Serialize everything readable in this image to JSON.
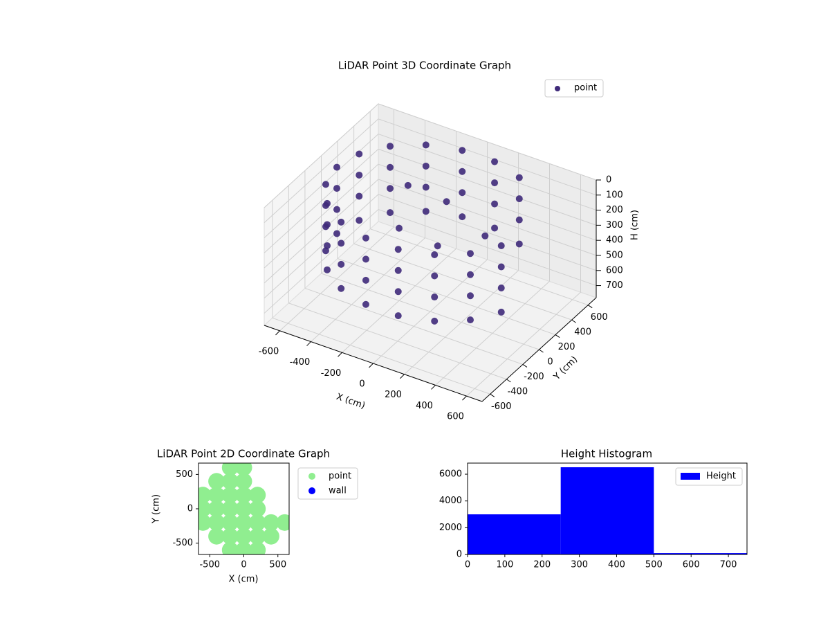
{
  "chart_data": [
    {
      "type": "scatter3d",
      "title": "LiDAR Point 3D Coordinate Graph",
      "xlabel": "X (cm)",
      "ylabel": "Y (cm)",
      "zlabel": "H (cm)",
      "xlim": [
        -700,
        700
      ],
      "ylim": [
        -700,
        700
      ],
      "zlim": [
        780,
        0
      ],
      "xticks": [
        -600,
        -400,
        -200,
        0,
        200,
        400,
        600
      ],
      "yticks": [
        -600,
        -400,
        -200,
        0,
        200,
        400,
        600
      ],
      "zticks": [
        0,
        100,
        200,
        300,
        400,
        500,
        600,
        700
      ],
      "grid": true,
      "legend": "upper right",
      "series": [
        {
          "name": "point",
          "color": "#3f2a7a",
          "x": [
            300,
            300,
            300,
            300,
            104,
            104,
            104,
            104,
            -104,
            -104,
            -104,
            -104,
            -300,
            -300,
            -300,
            -300,
            -460,
            -460,
            -460,
            -460,
            -564,
            -564,
            -564,
            -564,
            -600,
            -600,
            -600,
            -600,
            -564,
            -564,
            -564,
            -564,
            -460,
            -460,
            -460,
            -460,
            -300,
            -300,
            -300,
            -300,
            -104,
            -104,
            -104,
            -104,
            104,
            104,
            104,
            104,
            300,
            300,
            300,
            300,
            460,
            460,
            460,
            460,
            564,
            564,
            564,
            564,
            -300,
            0,
            100,
            -200,
            300
          ],
          "y": [
            520,
            520,
            520,
            520,
            591,
            591,
            591,
            591,
            591,
            591,
            591,
            591,
            520,
            520,
            520,
            520,
            386,
            386,
            386,
            386,
            205,
            205,
            205,
            205,
            0,
            0,
            0,
            0,
            -205,
            -205,
            -205,
            -205,
            -386,
            -386,
            -386,
            -386,
            -520,
            -520,
            -520,
            -520,
            -591,
            -591,
            -591,
            -591,
            -591,
            -591,
            -591,
            -591,
            -520,
            -520,
            -520,
            -520,
            -386,
            -386,
            -386,
            -386,
            -205,
            -205,
            -205,
            -205,
            300,
            200,
            -100,
            0,
            100
          ],
          "z": [
            40,
            180,
            320,
            480,
            40,
            180,
            320,
            480,
            40,
            180,
            320,
            480,
            40,
            180,
            320,
            480,
            40,
            180,
            320,
            480,
            40,
            180,
            320,
            480,
            40,
            180,
            320,
            480,
            40,
            180,
            320,
            480,
            40,
            180,
            320,
            480,
            40,
            180,
            320,
            480,
            40,
            180,
            320,
            480,
            40,
            180,
            320,
            480,
            40,
            180,
            320,
            480,
            40,
            180,
            320,
            480,
            40,
            180,
            320,
            480,
            200,
            150,
            260,
            300,
            220
          ]
        }
      ]
    },
    {
      "type": "scatter",
      "title": "LiDAR Point 2D Coordinate Graph",
      "xlabel": "X (cm)",
      "ylabel": "Y (cm)",
      "xlim": [
        -665,
        665
      ],
      "ylim": [
        -665,
        665
      ],
      "xticks": [
        -500,
        0,
        500
      ],
      "yticks": [
        -500,
        0,
        500
      ],
      "legend": "outside right",
      "series": [
        {
          "name": "point",
          "color": "#90ee90",
          "x": [
            -200,
            0,
            -400,
            -200,
            0,
            -600,
            -400,
            -200,
            0,
            200,
            -600,
            -400,
            -200,
            0,
            200,
            -600,
            -400,
            -200,
            0,
            200,
            400,
            600,
            -400,
            -200,
            0,
            200,
            400,
            -200,
            0,
            200
          ],
          "y": [
            600,
            600,
            400,
            400,
            400,
            200,
            200,
            200,
            200,
            200,
            0,
            0,
            0,
            0,
            0,
            -200,
            -200,
            -200,
            -200,
            -200,
            -200,
            -200,
            -400,
            -400,
            -400,
            -400,
            -400,
            -600,
            -600,
            -600
          ]
        },
        {
          "name": "wall",
          "color": "#0000ff",
          "x": [],
          "y": []
        }
      ]
    },
    {
      "type": "histogram",
      "title": "Height Histogram",
      "bins": [
        0,
        250,
        500,
        750
      ],
      "values": [
        3000,
        6520,
        100
      ],
      "name": "Height",
      "color": "#0000ff",
      "xlim": [
        0,
        750
      ],
      "ylim": [
        0,
        6830
      ],
      "xticks": [
        0,
        100,
        200,
        300,
        400,
        500,
        600,
        700
      ],
      "yticks": [
        0,
        2000,
        4000,
        6000
      ],
      "legend": "upper right"
    }
  ]
}
